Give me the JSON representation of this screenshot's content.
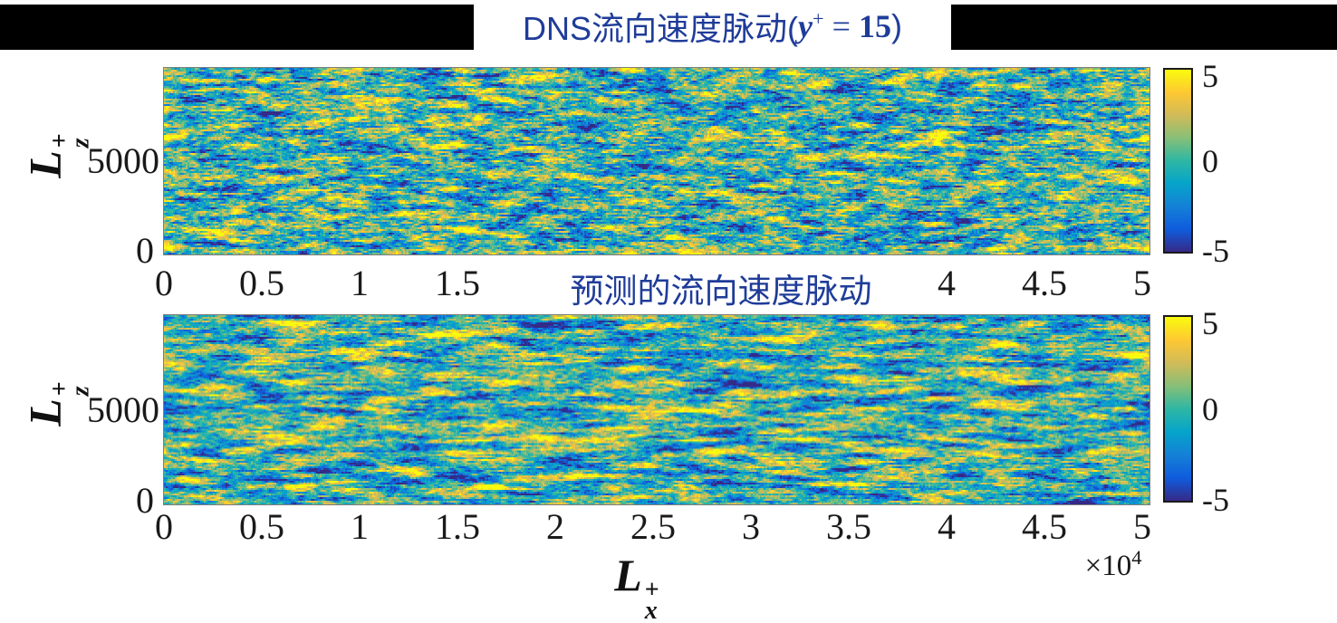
{
  "figure": {
    "background": "#ffffff",
    "banner_color": "#000000",
    "title_color": "#1f3c99",
    "tick_color": "#1a1a1a"
  },
  "titles": {
    "dns": {
      "prefix": "DNS流向速度脉动(",
      "var": "y",
      "sup": "+",
      "equals": " = ",
      "value": "15",
      "close": ")"
    },
    "predicted": {
      "text": "预测的流向速度脉动"
    }
  },
  "axes": {
    "xlabel": {
      "letter": "L",
      "sub": "x",
      "sup": "+"
    },
    "ylabel": {
      "letter": "L",
      "sub": "z",
      "sup": "+"
    },
    "x_scale": {
      "base": "×10",
      "exp": "4"
    },
    "xticks": [
      "0",
      "0.5",
      "1",
      "1.5",
      "2",
      "2.5",
      "3",
      "3.5",
      "4",
      "4.5",
      "5"
    ],
    "yticks": [
      {
        "value": 5000,
        "label": "5000"
      },
      {
        "value": 0,
        "label": "0"
      }
    ],
    "ymax": 10000
  },
  "colorbar": {
    "ticks": [
      "5",
      "0",
      "-5"
    ],
    "min": -5,
    "max": 5,
    "colormap": "parula",
    "parula_stops": [
      "#352a87",
      "#0f5cdd",
      "#1481d6",
      "#06a4ca",
      "#2eb7a4",
      "#87bf77",
      "#d1bb59",
      "#fec832",
      "#f9fb0e"
    ]
  },
  "chart_data": [
    {
      "id": "dns",
      "type": "heatmap",
      "title": "DNS流向速度脉动(y⁺ = 15)",
      "xlabel": "Lₓ⁺",
      "ylabel": "L_z⁺",
      "x_unit_scale": "×10⁴",
      "xlim": [
        0,
        51000
      ],
      "ylim": [
        0,
        10000
      ],
      "xtick_values": [
        0,
        5000,
        10000,
        15000,
        20000,
        25000,
        30000,
        35000,
        40000,
        45000,
        50000
      ],
      "ytick_values": [
        0,
        5000
      ],
      "value_range": [
        -5,
        5
      ],
      "colormap": "parula",
      "description": "Instantaneous DNS streamwise velocity-fluctuation field at y+=15: fine horizontally-elongated turbulent streaks spanning the colormap from -5 (dark blue) to +5 (yellow).",
      "texture": {
        "seed": 1234567,
        "h_smooth": 5,
        "long_mix": 0.62,
        "fine_mix": 0.5,
        "gain": 0.3
      }
    },
    {
      "id": "predicted",
      "type": "heatmap",
      "title": "预测的流向速度脉动",
      "xlabel": "Lₓ⁺",
      "ylabel": "L_z⁺",
      "x_unit_scale": "×10⁴",
      "xlim": [
        0,
        51000
      ],
      "ylim": [
        0,
        10000
      ],
      "xtick_values": [
        0,
        5000,
        10000,
        15000,
        20000,
        25000,
        30000,
        35000,
        40000,
        45000,
        50000
      ],
      "ytick_values": [
        0,
        5000
      ],
      "value_range": [
        -5,
        5
      ],
      "colormap": "parula",
      "description": "Predicted streamwise velocity-fluctuation field: slightly smoother horizontally-elongated streak pattern, same color range -5..5.",
      "texture": {
        "seed": 7654321,
        "h_smooth": 7,
        "long_mix": 0.68,
        "fine_mix": 0.42,
        "gain": 0.3
      }
    }
  ]
}
